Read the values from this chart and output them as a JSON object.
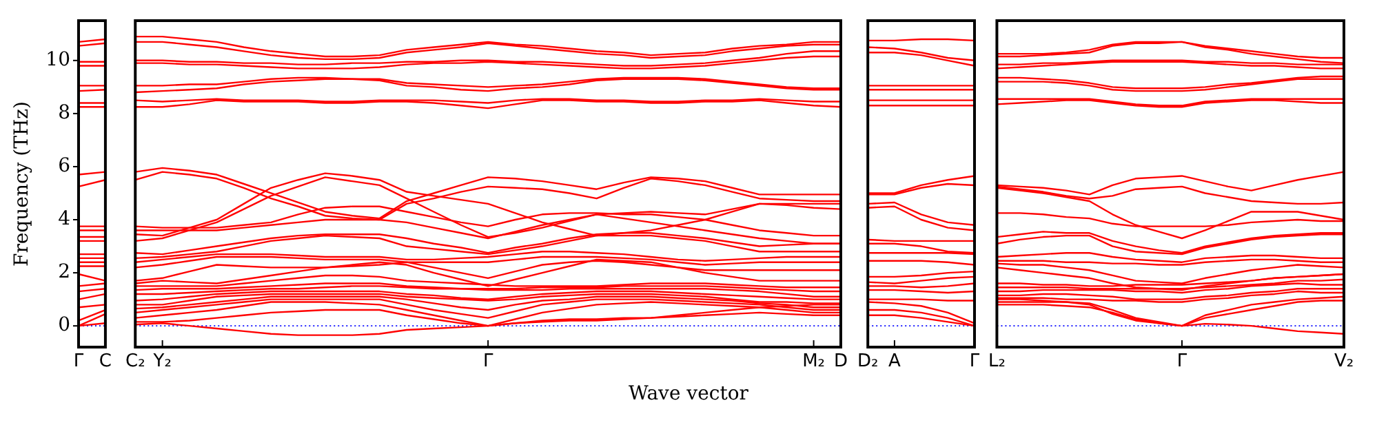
{
  "chart_data": [
    {
      "type": "line",
      "ylabel": "Frequency (THz)",
      "marker": "none",
      "categories": [
        "Γ",
        "C"
      ],
      "ylim": [
        -0.8,
        11.5
      ],
      "yticks": [
        0,
        2,
        4,
        6,
        8,
        10
      ],
      "ref_lines": [
        {
          "axis": "y",
          "value": 0,
          "color": "#0000ff",
          "line_style": "dotted"
        }
      ],
      "series": [
        {
          "color": "#ff0000",
          "values": [
            10.7,
            10.8
          ]
        },
        {
          "color": "#ff0000",
          "values": [
            10.55,
            10.65
          ]
        },
        {
          "color": "#ff0000",
          "values": [
            9.95,
            9.95
          ]
        },
        {
          "color": "#ff0000",
          "values": [
            9.8,
            9.8
          ]
        },
        {
          "color": "#ff0000",
          "values": [
            9.05,
            9.05
          ]
        },
        {
          "color": "#ff0000",
          "values": [
            8.85,
            8.9
          ]
        },
        {
          "color": "#ff0000",
          "values": [
            8.4,
            8.4
          ]
        },
        {
          "color": "#ff0000",
          "values": [
            8.25,
            8.25
          ]
        },
        {
          "color": "#ff0000",
          "values": [
            5.7,
            5.8
          ]
        },
        {
          "color": "#ff0000",
          "values": [
            5.25,
            5.5
          ]
        },
        {
          "color": "#ff0000",
          "values": [
            3.75,
            3.75
          ]
        },
        {
          "color": "#ff0000",
          "values": [
            3.6,
            3.6
          ]
        },
        {
          "color": "#ff0000",
          "values": [
            3.35,
            3.35
          ]
        },
        {
          "color": "#ff0000",
          "values": [
            3.2,
            3.2
          ]
        },
        {
          "color": "#ff0000",
          "values": [
            2.7,
            2.7
          ]
        },
        {
          "color": "#ff0000",
          "values": [
            2.55,
            2.55
          ]
        },
        {
          "color": "#ff0000",
          "values": [
            2.4,
            2.4
          ]
        },
        {
          "color": "#ff0000",
          "values": [
            2.25,
            2.25
          ]
        },
        {
          "color": "#ff0000",
          "values": [
            1.95,
            1.7
          ]
        },
        {
          "color": "#ff0000",
          "values": [
            1.5,
            1.6
          ]
        },
        {
          "color": "#ff0000",
          "values": [
            1.3,
            1.4
          ]
        },
        {
          "color": "#ff0000",
          "values": [
            1.0,
            1.2
          ]
        },
        {
          "color": "#ff0000",
          "values": [
            0.7,
            0.8
          ]
        },
        {
          "color": "#ff0000",
          "values": [
            0.2,
            0.6
          ]
        },
        {
          "color": "#ff0000",
          "values": [
            0,
            0.45
          ]
        },
        {
          "color": "#ff0000",
          "values": [
            0,
            0.1
          ]
        }
      ]
    },
    {
      "type": "line",
      "xlabel": "Wave vector",
      "marker": "none",
      "tick_labels": "x",
      "categories": [
        "C₂",
        "Y₂",
        null,
        null,
        null,
        null,
        null,
        null,
        null,
        null,
        null,
        null,
        null,
        "Γ",
        null,
        null,
        null,
        null,
        null,
        null,
        null,
        null,
        null,
        null,
        null,
        "M₂",
        "D"
      ],
      "ylim": [
        -0.8,
        11.5
      ],
      "yticks": [
        0,
        2,
        4,
        6,
        8,
        10
      ],
      "ref_lines": [
        {
          "axis": "y",
          "value": 0,
          "color": "#0000ff",
          "line_style": "dotted"
        }
      ],
      "series": [
        {
          "color": "#ff0000",
          "values": [
            10.9,
            10.9,
            10.8,
            10.7,
            10.5,
            10.35,
            10.25,
            10.15,
            10.15,
            10.2,
            10.4,
            10.5,
            10.6,
            10.7,
            10.6,
            10.55,
            10.45,
            10.35,
            10.3,
            10.2,
            10.25,
            10.3,
            10.45,
            10.55,
            10.6,
            10.7,
            10.7
          ]
        },
        {
          "color": "#ff0000",
          "values": [
            10.7,
            10.7,
            10.6,
            10.5,
            10.35,
            10.2,
            10.1,
            10.05,
            10.05,
            10.1,
            10.3,
            10.4,
            10.5,
            10.65,
            10.55,
            10.45,
            10.35,
            10.25,
            10.2,
            10.1,
            10.15,
            10.2,
            10.35,
            10.45,
            10.55,
            10.6,
            10.6
          ]
        },
        {
          "color": "#ff0000",
          "values": [
            10.0,
            10.0,
            9.95,
            9.95,
            9.9,
            9.9,
            9.85,
            9.85,
            9.9,
            9.9,
            9.95,
            9.95,
            10.0,
            10.0,
            9.95,
            9.95,
            9.9,
            9.85,
            9.8,
            9.8,
            9.85,
            9.9,
            10.0,
            10.1,
            10.25,
            10.35,
            10.35
          ]
        },
        {
          "color": "#ff0000",
          "values": [
            9.9,
            9.9,
            9.85,
            9.85,
            9.8,
            9.75,
            9.7,
            9.7,
            9.7,
            9.75,
            9.85,
            9.9,
            9.9,
            9.95,
            9.9,
            9.85,
            9.8,
            9.75,
            9.7,
            9.7,
            9.75,
            9.8,
            9.9,
            10.0,
            10.1,
            10.15,
            10.15
          ]
        },
        {
          "color": "#ff0000",
          "values": [
            9.05,
            9.05,
            9.1,
            9.1,
            9.2,
            9.3,
            9.35,
            9.35,
            9.3,
            9.3,
            9.15,
            9.1,
            9.05,
            9.0,
            9.05,
            9.1,
            9.2,
            9.3,
            9.35,
            9.35,
            9.35,
            9.3,
            9.2,
            9.1,
            9.0,
            8.95,
            8.95
          ]
        },
        {
          "color": "#ff0000",
          "values": [
            8.8,
            8.85,
            8.9,
            8.95,
            9.1,
            9.2,
            9.25,
            9.3,
            9.3,
            9.25,
            9.05,
            9.0,
            8.9,
            8.85,
            8.95,
            9.0,
            9.1,
            9.25,
            9.3,
            9.3,
            9.3,
            9.25,
            9.15,
            9.05,
            8.95,
            8.9,
            8.9
          ]
        },
        {
          "color": "#ff0000",
          "values": [
            8.5,
            8.45,
            8.5,
            8.55,
            8.5,
            8.5,
            8.5,
            8.45,
            8.45,
            8.5,
            8.5,
            8.5,
            8.45,
            8.4,
            8.5,
            8.55,
            8.55,
            8.5,
            8.5,
            8.45,
            8.45,
            8.5,
            8.5,
            8.55,
            8.5,
            8.45,
            8.45
          ]
        },
        {
          "color": "#ff0000",
          "values": [
            8.25,
            8.25,
            8.35,
            8.5,
            8.45,
            8.45,
            8.45,
            8.4,
            8.4,
            8.45,
            8.45,
            8.4,
            8.3,
            8.2,
            8.35,
            8.5,
            8.5,
            8.45,
            8.45,
            8.4,
            8.4,
            8.45,
            8.45,
            8.5,
            8.4,
            8.3,
            8.25
          ]
        },
        {
          "color": "#ff0000",
          "values": [
            5.8,
            5.95,
            5.85,
            5.7,
            5.35,
            5.0,
            4.65,
            4.3,
            4.15,
            4.05,
            4.7,
            5.0,
            5.3,
            5.6,
            5.55,
            5.45,
            5.3,
            5.15,
            5.4,
            5.6,
            5.55,
            5.45,
            5.2,
            4.95,
            4.95,
            4.95,
            4.95
          ]
        },
        {
          "color": "#ff0000",
          "values": [
            5.5,
            5.8,
            5.7,
            5.55,
            5.2,
            4.8,
            4.5,
            4.15,
            4.05,
            4.0,
            4.6,
            4.8,
            5.05,
            5.25,
            5.2,
            5.15,
            5.0,
            4.8,
            5.2,
            5.55,
            5.45,
            5.3,
            5.05,
            4.8,
            4.75,
            4.7,
            4.7
          ]
        },
        {
          "color": "#ff0000",
          "values": [
            3.45,
            3.4,
            3.7,
            4.0,
            4.6,
            5.2,
            5.5,
            5.75,
            5.65,
            5.5,
            5.05,
            4.9,
            4.75,
            4.6,
            4.25,
            3.9,
            3.65,
            3.4,
            3.5,
            3.6,
            3.8,
            4.0,
            4.3,
            4.6,
            4.6,
            4.6,
            4.6
          ]
        },
        {
          "color": "#ff0000",
          "values": [
            3.2,
            3.3,
            3.6,
            3.9,
            4.4,
            4.9,
            5.25,
            5.6,
            5.45,
            5.3,
            4.8,
            4.3,
            3.8,
            3.35,
            3.5,
            3.7,
            3.95,
            4.2,
            4.25,
            4.3,
            4.25,
            4.2,
            4.4,
            4.6,
            4.55,
            4.45,
            4.4
          ]
        },
        {
          "color": "#ff0000",
          "values": [
            3.75,
            3.7,
            3.7,
            3.7,
            3.8,
            3.9,
            4.2,
            4.45,
            4.5,
            4.5,
            4.3,
            4.1,
            3.9,
            3.75,
            4.0,
            4.2,
            4.25,
            4.25,
            4.2,
            4.2,
            4.1,
            4.0,
            3.8,
            3.6,
            3.5,
            3.4,
            3.4
          ]
        },
        {
          "color": "#ff0000",
          "values": [
            3.6,
            3.6,
            3.6,
            3.6,
            3.7,
            3.8,
            3.9,
            4.0,
            4.0,
            4.0,
            3.9,
            3.7,
            3.5,
            3.3,
            3.55,
            3.8,
            4.0,
            4.2,
            4.05,
            3.9,
            3.75,
            3.6,
            3.45,
            3.3,
            3.2,
            3.1,
            3.1
          ]
        },
        {
          "color": "#ff0000",
          "values": [
            2.75,
            2.7,
            2.85,
            3.0,
            3.15,
            3.3,
            3.4,
            3.45,
            3.45,
            3.45,
            3.3,
            3.1,
            2.95,
            2.75,
            2.95,
            3.1,
            3.3,
            3.45,
            3.5,
            3.5,
            3.4,
            3.3,
            3.15,
            3.0,
            3.05,
            3.1,
            3.1
          ]
        },
        {
          "color": "#ff0000",
          "values": [
            2.55,
            2.6,
            2.7,
            2.8,
            3.0,
            3.2,
            3.3,
            3.4,
            3.35,
            3.3,
            3.0,
            2.9,
            2.8,
            2.7,
            2.85,
            3.0,
            3.2,
            3.4,
            3.4,
            3.4,
            3.3,
            3.2,
            3.0,
            2.8,
            2.8,
            2.8,
            2.8
          ]
        },
        {
          "color": "#ff0000",
          "values": [
            2.4,
            2.5,
            2.6,
            2.7,
            2.7,
            2.7,
            2.65,
            2.6,
            2.6,
            2.6,
            2.5,
            2.5,
            2.55,
            2.6,
            2.7,
            2.8,
            2.8,
            2.75,
            2.7,
            2.6,
            2.5,
            2.45,
            2.5,
            2.55,
            2.6,
            2.6,
            2.6
          ]
        },
        {
          "color": "#ff0000",
          "values": [
            2.2,
            2.3,
            2.45,
            2.6,
            2.6,
            2.6,
            2.55,
            2.5,
            2.5,
            2.5,
            2.4,
            2.4,
            2.4,
            2.4,
            2.5,
            2.6,
            2.6,
            2.6,
            2.55,
            2.5,
            2.4,
            2.3,
            2.35,
            2.4,
            2.4,
            2.4,
            2.4
          ]
        },
        {
          "color": "#ff0000",
          "values": [
            1.7,
            1.8,
            2.05,
            2.3,
            2.25,
            2.2,
            2.2,
            2.2,
            2.25,
            2.3,
            2.4,
            2.2,
            2.0,
            1.8,
            2.05,
            2.3,
            2.4,
            2.45,
            2.4,
            2.3,
            2.2,
            2.1,
            2.1,
            2.1,
            2.1,
            2.1,
            2.1
          ]
        },
        {
          "color": "#ff0000",
          "values": [
            1.6,
            1.7,
            1.65,
            1.6,
            1.75,
            1.9,
            2.05,
            2.2,
            2.3,
            2.4,
            2.3,
            2.0,
            1.75,
            1.5,
            1.75,
            2.0,
            2.25,
            2.5,
            2.45,
            2.4,
            2.2,
            2.0,
            1.85,
            1.7,
            1.7,
            1.7,
            1.7
          ]
        },
        {
          "color": "#ff0000",
          "values": [
            1.5,
            1.5,
            1.5,
            1.5,
            1.6,
            1.7,
            1.8,
            1.9,
            1.9,
            1.85,
            1.7,
            1.65,
            1.6,
            1.55,
            1.5,
            1.5,
            1.5,
            1.5,
            1.55,
            1.6,
            1.6,
            1.6,
            1.55,
            1.5,
            1.45,
            1.45,
            1.45
          ]
        },
        {
          "color": "#ff0000",
          "values": [
            1.35,
            1.4,
            1.4,
            1.4,
            1.45,
            1.5,
            1.55,
            1.6,
            1.6,
            1.6,
            1.5,
            1.45,
            1.4,
            1.4,
            1.4,
            1.45,
            1.45,
            1.45,
            1.5,
            1.5,
            1.5,
            1.5,
            1.45,
            1.4,
            1.35,
            1.3,
            1.3
          ]
        },
        {
          "color": "#ff0000",
          "values": [
            1.2,
            1.2,
            1.25,
            1.3,
            1.35,
            1.4,
            1.4,
            1.45,
            1.5,
            1.5,
            1.45,
            1.4,
            1.4,
            1.35,
            1.35,
            1.35,
            1.4,
            1.4,
            1.4,
            1.4,
            1.4,
            1.4,
            1.35,
            1.3,
            1.2,
            1.1,
            1.1
          ]
        },
        {
          "color": "#ff0000",
          "values": [
            0.95,
            1.0,
            1.1,
            1.2,
            1.25,
            1.3,
            1.3,
            1.3,
            1.3,
            1.3,
            1.2,
            1.15,
            1.05,
            1.0,
            1.1,
            1.2,
            1.25,
            1.3,
            1.3,
            1.3,
            1.25,
            1.2,
            1.15,
            1.1,
            1.05,
            1.0,
            1.0
          ]
        },
        {
          "color": "#ff0000",
          "values": [
            0.8,
            0.8,
            0.95,
            1.1,
            1.15,
            1.2,
            1.2,
            1.2,
            1.2,
            1.2,
            1.1,
            1.05,
            1.0,
            0.95,
            1.0,
            1.1,
            1.15,
            1.2,
            1.2,
            1.2,
            1.15,
            1.1,
            1.0,
            0.9,
            0.9,
            0.85,
            0.85
          ]
        },
        {
          "color": "#ff0000",
          "values": [
            0.65,
            0.7,
            0.8,
            0.9,
            1.0,
            1.1,
            1.1,
            1.1,
            1.1,
            1.1,
            1.0,
            0.85,
            0.7,
            0.6,
            0.8,
            0.95,
            1.0,
            1.1,
            1.1,
            1.1,
            1.05,
            1.0,
            0.95,
            0.85,
            0.8,
            0.7,
            0.7
          ]
        },
        {
          "color": "#ff0000",
          "values": [
            0.5,
            0.6,
            0.7,
            0.8,
            0.9,
            1.0,
            1.0,
            1.0,
            1.0,
            1.0,
            0.8,
            0.6,
            0.45,
            0.3,
            0.55,
            0.8,
            0.9,
            1.0,
            1.0,
            1.0,
            0.95,
            0.9,
            0.85,
            0.8,
            0.7,
            0.6,
            0.6
          ]
        },
        {
          "color": "#ff0000",
          "values": [
            0.3,
            0.4,
            0.5,
            0.6,
            0.75,
            0.9,
            0.9,
            0.9,
            0.85,
            0.8,
            0.6,
            0.4,
            0.2,
            0,
            0.25,
            0.5,
            0.65,
            0.8,
            0.85,
            0.9,
            0.85,
            0.8,
            0.75,
            0.7,
            0.6,
            0.5,
            0.5
          ]
        },
        {
          "color": "#ff0000",
          "values": [
            0.15,
            0.15,
            0.2,
            0.3,
            0.4,
            0.5,
            0.55,
            0.6,
            0.6,
            0.6,
            0.4,
            0.25,
            0.1,
            0,
            0.1,
            0.2,
            0.25,
            0.25,
            0.3,
            0.3,
            0.35,
            0.4,
            0.45,
            0.5,
            0.45,
            0.4,
            0.4
          ]
        },
        {
          "color": "#ff0000",
          "values": [
            0.05,
            0.1,
            0.0,
            -0.1,
            -0.2,
            -0.3,
            -0.35,
            -0.35,
            -0.35,
            -0.3,
            -0.15,
            -0.1,
            -0.05,
            0,
            0.1,
            0.15,
            0.2,
            0.2,
            0.25,
            0.3,
            0.4,
            0.5,
            0.6,
            0.7,
            0.75,
            0.8,
            0.8
          ]
        }
      ]
    },
    {
      "type": "line",
      "marker": "none",
      "tick_labels": "x",
      "categories": [
        "D₂",
        "A",
        null,
        null,
        "Γ"
      ],
      "ylim": [
        -0.8,
        11.5
      ],
      "yticks": [
        0,
        2,
        4,
        6,
        8,
        10
      ],
      "ref_lines": [
        {
          "axis": "y",
          "value": 0,
          "color": "#0000ff",
          "line_style": "dotted"
        }
      ],
      "series": [
        {
          "color": "#ff0000",
          "values": [
            10.75,
            10.75,
            10.8,
            10.8,
            10.75
          ]
        },
        {
          "color": "#ff0000",
          "values": [
            10.5,
            10.45,
            10.3,
            10.1,
            10.0
          ]
        },
        {
          "color": "#ff0000",
          "values": [
            10.3,
            10.3,
            10.2,
            10.0,
            9.8
          ]
        },
        {
          "color": "#ff0000",
          "values": [
            9.05,
            9.05,
            9.05,
            9.05,
            9.05
          ]
        },
        {
          "color": "#ff0000",
          "values": [
            8.9,
            8.9,
            8.9,
            8.9,
            8.9
          ]
        },
        {
          "color": "#ff0000",
          "values": [
            8.5,
            8.5,
            8.5,
            8.5,
            8.5
          ]
        },
        {
          "color": "#ff0000",
          "values": [
            8.3,
            8.3,
            8.3,
            8.3,
            8.3
          ]
        },
        {
          "color": "#ff0000",
          "values": [
            5.0,
            5.0,
            5.3,
            5.5,
            5.65
          ]
        },
        {
          "color": "#ff0000",
          "values": [
            4.95,
            4.95,
            5.2,
            5.35,
            5.3
          ]
        },
        {
          "color": "#ff0000",
          "values": [
            4.6,
            4.65,
            4.2,
            3.9,
            3.8
          ]
        },
        {
          "color": "#ff0000",
          "values": [
            4.45,
            4.5,
            4.0,
            3.7,
            3.6
          ]
        },
        {
          "color": "#ff0000",
          "values": [
            3.25,
            3.2,
            3.2,
            3.2,
            3.2
          ]
        },
        {
          "color": "#ff0000",
          "values": [
            3.1,
            3.1,
            3.0,
            2.8,
            2.75
          ]
        },
        {
          "color": "#ff0000",
          "values": [
            2.75,
            2.75,
            2.75,
            2.75,
            2.7
          ]
        },
        {
          "color": "#ff0000",
          "values": [
            2.45,
            2.45,
            2.45,
            2.4,
            2.3
          ]
        },
        {
          "color": "#ff0000",
          "values": [
            1.85,
            1.85,
            1.9,
            2.0,
            2.05
          ]
        },
        {
          "color": "#ff0000",
          "values": [
            1.65,
            1.6,
            1.7,
            1.8,
            1.85
          ]
        },
        {
          "color": "#ff0000",
          "values": [
            1.5,
            1.5,
            1.45,
            1.5,
            1.6
          ]
        },
        {
          "color": "#ff0000",
          "values": [
            1.35,
            1.35,
            1.3,
            1.25,
            1.3
          ]
        },
        {
          "color": "#ff0000",
          "values": [
            1.0,
            1.0,
            1.0,
            0.95,
            0.95
          ]
        },
        {
          "color": "#ff0000",
          "values": [
            0.9,
            0.85,
            0.75,
            0.5,
            0.1
          ]
        },
        {
          "color": "#ff0000",
          "values": [
            0.6,
            0.6,
            0.5,
            0.3,
            0.0
          ]
        },
        {
          "color": "#ff0000",
          "values": [
            0.4,
            0.4,
            0.3,
            0.15,
            0.0
          ]
        }
      ]
    },
    {
      "type": "line",
      "marker": "none",
      "tick_labels": "x",
      "categories": [
        "L₂",
        null,
        null,
        null,
        null,
        null,
        null,
        null,
        "Γ",
        null,
        null,
        null,
        null,
        null,
        null,
        "V₂"
      ],
      "ylim": [
        -0.8,
        11.5
      ],
      "yticks": [
        0,
        2,
        4,
        6,
        8,
        10
      ],
      "ref_lines": [
        {
          "axis": "y",
          "value": 0,
          "color": "#0000ff",
          "line_style": "dotted"
        }
      ],
      "series": [
        {
          "color": "#ff0000",
          "values": [
            10.25,
            10.25,
            10.25,
            10.3,
            10.4,
            10.6,
            10.7,
            10.7,
            10.7,
            10.55,
            10.45,
            10.35,
            10.25,
            10.15,
            10.1,
            10.1
          ]
        },
        {
          "color": "#ff0000",
          "values": [
            10.15,
            10.15,
            10.2,
            10.25,
            10.3,
            10.55,
            10.65,
            10.65,
            10.7,
            10.5,
            10.4,
            10.25,
            10.15,
            10.05,
            9.95,
            9.9
          ]
        },
        {
          "color": "#ff0000",
          "values": [
            9.85,
            9.85,
            9.9,
            9.9,
            9.95,
            10.0,
            10.0,
            10.0,
            10.0,
            9.95,
            9.95,
            9.9,
            9.9,
            9.85,
            9.85,
            9.85
          ]
        },
        {
          "color": "#ff0000",
          "values": [
            9.7,
            9.75,
            9.8,
            9.85,
            9.9,
            9.95,
            9.95,
            9.95,
            9.95,
            9.9,
            9.85,
            9.8,
            9.8,
            9.75,
            9.7,
            9.7
          ]
        },
        {
          "color": "#ff0000",
          "values": [
            9.35,
            9.35,
            9.3,
            9.25,
            9.15,
            9.0,
            8.95,
            8.95,
            8.95,
            9.0,
            9.1,
            9.15,
            9.25,
            9.35,
            9.4,
            9.4
          ]
        },
        {
          "color": "#ff0000",
          "values": [
            9.2,
            9.2,
            9.2,
            9.15,
            9.05,
            8.9,
            8.85,
            8.85,
            8.85,
            8.9,
            9.0,
            9.1,
            9.2,
            9.3,
            9.3,
            9.3
          ]
        },
        {
          "color": "#ff0000",
          "values": [
            8.55,
            8.55,
            8.55,
            8.55,
            8.55,
            8.45,
            8.35,
            8.3,
            8.3,
            8.45,
            8.5,
            8.55,
            8.55,
            8.55,
            8.55,
            8.55
          ]
        },
        {
          "color": "#ff0000",
          "values": [
            8.35,
            8.4,
            8.45,
            8.5,
            8.5,
            8.4,
            8.3,
            8.25,
            8.25,
            8.4,
            8.45,
            8.5,
            8.5,
            8.45,
            8.4,
            8.4
          ]
        },
        {
          "color": "#ff0000",
          "values": [
            5.3,
            5.25,
            5.2,
            5.1,
            4.95,
            5.3,
            5.55,
            5.6,
            5.65,
            5.45,
            5.25,
            5.1,
            5.3,
            5.5,
            5.65,
            5.8
          ]
        },
        {
          "color": "#ff0000",
          "values": [
            5.25,
            5.15,
            5.05,
            4.9,
            4.8,
            4.9,
            5.15,
            5.2,
            5.25,
            5.0,
            4.85,
            4.7,
            4.65,
            4.6,
            4.6,
            4.65
          ]
        },
        {
          "color": "#ff0000",
          "values": [
            5.2,
            5.1,
            5.0,
            4.85,
            4.7,
            4.2,
            3.8,
            3.55,
            3.3,
            3.6,
            3.95,
            4.3,
            4.3,
            4.3,
            4.15,
            4.0
          ]
        },
        {
          "color": "#ff0000",
          "values": [
            4.25,
            4.25,
            4.2,
            4.1,
            4.05,
            3.85,
            3.75,
            3.75,
            3.75,
            3.75,
            3.8,
            3.9,
            3.95,
            4.0,
            3.95,
            3.95
          ]
        },
        {
          "color": "#ff0000",
          "values": [
            3.35,
            3.45,
            3.55,
            3.5,
            3.5,
            3.2,
            3.0,
            2.85,
            2.75,
            3.0,
            3.15,
            3.3,
            3.4,
            3.45,
            3.5,
            3.5
          ]
        },
        {
          "color": "#ff0000",
          "values": [
            3.1,
            3.25,
            3.35,
            3.4,
            3.4,
            3.0,
            2.8,
            2.75,
            2.7,
            2.95,
            3.1,
            3.25,
            3.35,
            3.4,
            3.45,
            3.45
          ]
        },
        {
          "color": "#ff0000",
          "values": [
            2.6,
            2.65,
            2.7,
            2.75,
            2.75,
            2.6,
            2.5,
            2.45,
            2.4,
            2.55,
            2.6,
            2.65,
            2.65,
            2.6,
            2.55,
            2.55
          ]
        },
        {
          "color": "#ff0000",
          "values": [
            2.45,
            2.45,
            2.45,
            2.4,
            2.4,
            2.35,
            2.35,
            2.3,
            2.3,
            2.4,
            2.45,
            2.5,
            2.5,
            2.45,
            2.4,
            2.4
          ]
        },
        {
          "color": "#ff0000",
          "values": [
            2.35,
            2.3,
            2.3,
            2.2,
            2.1,
            1.9,
            1.7,
            1.65,
            1.6,
            1.8,
            1.95,
            2.1,
            2.2,
            2.3,
            2.25,
            2.2
          ]
        },
        {
          "color": "#ff0000",
          "values": [
            2.2,
            2.1,
            2.0,
            1.9,
            1.8,
            1.6,
            1.45,
            1.4,
            1.35,
            1.5,
            1.6,
            1.7,
            1.8,
            1.85,
            1.9,
            1.95
          ]
        },
        {
          "color": "#ff0000",
          "values": [
            1.6,
            1.6,
            1.55,
            1.55,
            1.5,
            1.5,
            1.55,
            1.55,
            1.55,
            1.6,
            1.65,
            1.7,
            1.8,
            1.85,
            1.9,
            1.95
          ]
        },
        {
          "color": "#ff0000",
          "values": [
            1.45,
            1.45,
            1.45,
            1.45,
            1.4,
            1.4,
            1.4,
            1.4,
            1.4,
            1.45,
            1.5,
            1.55,
            1.6,
            1.7,
            1.7,
            1.75
          ]
        },
        {
          "color": "#ff0000",
          "values": [
            1.3,
            1.3,
            1.35,
            1.35,
            1.35,
            1.35,
            1.3,
            1.3,
            1.25,
            1.35,
            1.4,
            1.5,
            1.55,
            1.6,
            1.55,
            1.55
          ]
        },
        {
          "color": "#ff0000",
          "values": [
            1.15,
            1.15,
            1.2,
            1.2,
            1.15,
            1.1,
            1.0,
            1.0,
            1.0,
            1.1,
            1.15,
            1.25,
            1.3,
            1.4,
            1.4,
            1.4
          ]
        },
        {
          "color": "#ff0000",
          "values": [
            1.05,
            1.05,
            1.05,
            1.0,
            1.0,
            0.95,
            0.95,
            0.9,
            0.9,
            1.0,
            1.05,
            1.15,
            1.2,
            1.3,
            1.25,
            1.25
          ]
        },
        {
          "color": "#ff0000",
          "values": [
            0.9,
            0.9,
            0.9,
            0.9,
            0.85,
            0.6,
            0.3,
            0.15,
            0.0,
            0.4,
            0.6,
            0.8,
            0.9,
            1.0,
            1.05,
            1.1
          ]
        },
        {
          "color": "#ff0000",
          "values": [
            0.8,
            0.8,
            0.8,
            0.75,
            0.7,
            0.5,
            0.25,
            0.1,
            0.0,
            0.3,
            0.45,
            0.6,
            0.75,
            0.9,
            0.95,
            0.95
          ]
        },
        {
          "color": "#ff0000",
          "values": [
            1.0,
            1.0,
            0.95,
            0.9,
            0.8,
            0.45,
            0.2,
            0.1,
            0.0,
            0.08,
            0.05,
            0.0,
            -0.1,
            -0.2,
            -0.25,
            -0.3
          ]
        }
      ]
    }
  ]
}
